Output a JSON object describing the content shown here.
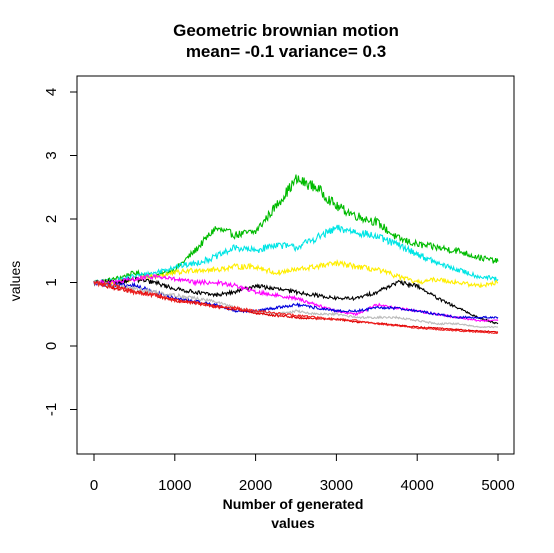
{
  "chart_data": {
    "type": "line",
    "title": "Geometric brownian motion",
    "subtitle": "mean= -0.1 variance= 0.3",
    "xlabel_line1": "Number of generated",
    "xlabel_line2": "values",
    "ylabel": "values",
    "xlim": [
      0,
      5000
    ],
    "ylim": [
      -1.7,
      4.2
    ],
    "x_ticks": [
      0,
      1000,
      2000,
      3000,
      4000,
      5000
    ],
    "x_tick_labels": [
      "0",
      "1000",
      "2000",
      "3000",
      "4000",
      "5000"
    ],
    "y_ticks": [
      -1,
      0,
      1,
      2,
      3,
      4
    ],
    "y_tick_labels": [
      "-1",
      "0",
      "1",
      "2",
      "3",
      "4"
    ],
    "grid": false,
    "x": [
      0,
      250,
      500,
      750,
      1000,
      1250,
      1500,
      1750,
      2000,
      2250,
      2500,
      2750,
      3000,
      3250,
      3500,
      3750,
      4000,
      4250,
      4500,
      4750,
      5000
    ],
    "series": [
      {
        "color": "#00bb00",
        "values": [
          1.0,
          1.05,
          1.15,
          1.1,
          1.2,
          1.5,
          1.85,
          1.75,
          1.8,
          2.2,
          2.62,
          2.5,
          2.2,
          2.05,
          1.95,
          1.7,
          1.6,
          1.55,
          1.5,
          1.4,
          1.33
        ]
      },
      {
        "color": "#00e5e5",
        "values": [
          1.0,
          1.02,
          1.1,
          1.15,
          1.25,
          1.3,
          1.4,
          1.55,
          1.5,
          1.6,
          1.55,
          1.7,
          1.85,
          1.8,
          1.72,
          1.6,
          1.45,
          1.3,
          1.2,
          1.1,
          1.05
        ]
      },
      {
        "color": "#ffee00",
        "values": [
          1.0,
          1.0,
          1.05,
          1.1,
          1.15,
          1.2,
          1.2,
          1.25,
          1.25,
          1.15,
          1.2,
          1.25,
          1.3,
          1.25,
          1.2,
          1.1,
          1.0,
          1.05,
          1.0,
          0.95,
          1.0
        ]
      },
      {
        "color": "#000000",
        "values": [
          1.0,
          1.0,
          1.05,
          1.0,
          0.9,
          0.85,
          0.8,
          0.85,
          0.95,
          0.9,
          0.85,
          0.8,
          0.75,
          0.75,
          0.85,
          1.0,
          0.95,
          0.75,
          0.6,
          0.45,
          0.35
        ]
      },
      {
        "color": "#ff00ff",
        "values": [
          1.0,
          1.0,
          1.05,
          1.1,
          1.05,
          1.0,
          1.0,
          0.95,
          0.85,
          0.8,
          0.75,
          0.65,
          0.55,
          0.5,
          0.65,
          0.6,
          0.55,
          0.5,
          0.45,
          0.4,
          0.4
        ]
      },
      {
        "color": "#0000dd",
        "values": [
          1.0,
          0.95,
          0.95,
          0.85,
          0.75,
          0.7,
          0.65,
          0.55,
          0.55,
          0.6,
          0.65,
          0.6,
          0.55,
          0.55,
          0.6,
          0.6,
          0.55,
          0.5,
          0.45,
          0.45,
          0.45
        ]
      },
      {
        "color": "#bbbbbb",
        "values": [
          1.0,
          0.95,
          0.9,
          0.85,
          0.8,
          0.75,
          0.7,
          0.6,
          0.55,
          0.5,
          0.55,
          0.5,
          0.5,
          0.45,
          0.45,
          0.45,
          0.4,
          0.35,
          0.35,
          0.3,
          0.3
        ]
      },
      {
        "color": "#dd0000",
        "values": [
          1.0,
          0.92,
          0.85,
          0.8,
          0.72,
          0.68,
          0.62,
          0.58,
          0.52,
          0.48,
          0.45,
          0.43,
          0.42,
          0.38,
          0.36,
          0.33,
          0.3,
          0.28,
          0.26,
          0.24,
          0.22
        ]
      },
      {
        "color": "#ee2222",
        "values": [
          1.0,
          0.95,
          0.85,
          0.8,
          0.72,
          0.68,
          0.62,
          0.6,
          0.55,
          0.52,
          0.48,
          0.45,
          0.42,
          0.4,
          0.35,
          0.32,
          0.28,
          0.26,
          0.24,
          0.22,
          0.2
        ]
      }
    ]
  }
}
